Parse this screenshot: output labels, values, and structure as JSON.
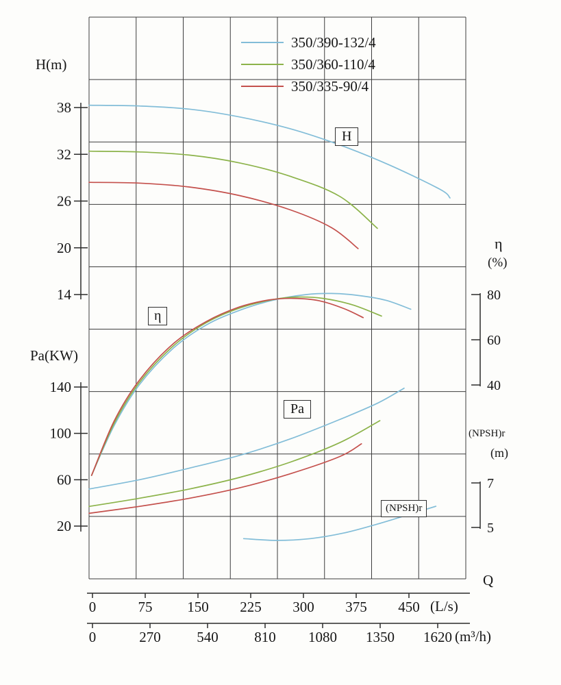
{
  "page": {
    "background": "#fdfdfb",
    "grid_color": "#3d3d3d",
    "text_color": "#161616"
  },
  "legend": {
    "position": "top-center",
    "entries": [
      {
        "label": "350/390-132/4",
        "color": "#82bdd8"
      },
      {
        "label": "350/360-110/4",
        "color": "#8cb34a"
      },
      {
        "label": "350/335-90/4",
        "color": "#c4504c"
      }
    ]
  },
  "axes": {
    "h": {
      "title": "H(m)",
      "ticks": [
        38,
        32,
        26,
        20,
        14
      ]
    },
    "pa": {
      "title": "Pa(KW)",
      "ticks": [
        140,
        100,
        60,
        20
      ]
    },
    "eta": {
      "title": "η",
      "unit": "(%)",
      "ticks": [
        80,
        60,
        40
      ]
    },
    "npsh": {
      "title": "(NPSH)r",
      "unit": "(m)",
      "ticks": [
        7,
        5
      ]
    },
    "q_ls": {
      "title": "Q",
      "unit": "(L/s)",
      "ticks": [
        0,
        75,
        150,
        225,
        300,
        375,
        450
      ]
    },
    "q_m3h": {
      "unit": "(m³/h)",
      "ticks": [
        0,
        270,
        540,
        810,
        1080,
        1350,
        1620
      ]
    }
  },
  "inline_labels": {
    "h": "H",
    "eta": "η",
    "pa": "Pa",
    "npsh": "(NPSH)r"
  },
  "chart_data": {
    "type": "line",
    "title": "",
    "grid": true,
    "legend_position": "top-center",
    "x_axis": {
      "label": "Q",
      "units": [
        "L/s",
        "m³/h"
      ],
      "ticks_ls": [
        0,
        75,
        150,
        225,
        300,
        375,
        450
      ],
      "ticks_m3h": [
        0,
        270,
        540,
        810,
        1080,
        1350,
        1620
      ],
      "range_ls": [
        0,
        450
      ]
    },
    "y_axes": [
      {
        "id": "H",
        "label": "H(m)",
        "side": "left",
        "ticks": [
          38,
          32,
          26,
          20,
          14
        ]
      },
      {
        "id": "Pa",
        "label": "Pa(KW)",
        "side": "left",
        "ticks": [
          140,
          100,
          60,
          20
        ]
      },
      {
        "id": "eta",
        "label": "η(%)",
        "side": "right",
        "ticks": [
          80,
          60,
          40
        ]
      },
      {
        "id": "NPSHr",
        "label": "(NPSH)r(m)",
        "side": "right",
        "ticks": [
          7,
          5
        ]
      }
    ],
    "series": [
      {
        "name": "350/390-132/4",
        "group": "H",
        "axis": "H",
        "unit": "m",
        "color": "#82bdd8",
        "points": [
          [
            0,
            38.3
          ],
          [
            60,
            38.2
          ],
          [
            120,
            37.8
          ],
          [
            180,
            36.8
          ],
          [
            240,
            35.3
          ],
          [
            300,
            33.2
          ],
          [
            360,
            30.6
          ],
          [
            420,
            27.5
          ],
          [
            432,
            26.4
          ]
        ]
      },
      {
        "name": "350/360-110/4",
        "group": "H",
        "axis": "H",
        "unit": "m",
        "color": "#8cb34a",
        "points": [
          [
            0,
            32.4
          ],
          [
            60,
            32.3
          ],
          [
            120,
            31.9
          ],
          [
            180,
            30.9
          ],
          [
            240,
            29.2
          ],
          [
            300,
            26.6
          ],
          [
            345,
            22.5
          ]
        ]
      },
      {
        "name": "350/335-90/4",
        "group": "H",
        "axis": "H",
        "unit": "m",
        "color": "#c4504c",
        "points": [
          [
            0,
            28.4
          ],
          [
            60,
            28.3
          ],
          [
            120,
            27.8
          ],
          [
            180,
            26.7
          ],
          [
            240,
            24.9
          ],
          [
            290,
            22.6
          ],
          [
            322,
            19.9
          ]
        ]
      },
      {
        "name": "350/390-132/4",
        "group": "eta",
        "axis": "eta",
        "unit": "%",
        "color": "#82bdd8",
        "points": [
          [
            3,
            0
          ],
          [
            30,
            22
          ],
          [
            60,
            40
          ],
          [
            100,
            56
          ],
          [
            140,
            66.5
          ],
          [
            180,
            73
          ],
          [
            220,
            77.5
          ],
          [
            260,
            80
          ],
          [
            290,
            80.5
          ],
          [
            320,
            79.7
          ],
          [
            355,
            77.5
          ],
          [
            385,
            73.5
          ]
        ]
      },
      {
        "name": "350/360-110/4",
        "group": "eta",
        "axis": "eta",
        "unit": "%",
        "color": "#8cb34a",
        "points": [
          [
            3,
            0
          ],
          [
            30,
            23
          ],
          [
            60,
            41
          ],
          [
            100,
            57
          ],
          [
            140,
            67.5
          ],
          [
            180,
            74
          ],
          [
            220,
            77.8
          ],
          [
            250,
            78.9
          ],
          [
            280,
            78.3
          ],
          [
            315,
            75.5
          ],
          [
            350,
            70.5
          ]
        ]
      },
      {
        "name": "350/335-90/4",
        "group": "eta",
        "axis": "eta",
        "unit": "%",
        "color": "#c4504c",
        "points": [
          [
            3,
            0
          ],
          [
            30,
            24
          ],
          [
            60,
            42
          ],
          [
            100,
            58
          ],
          [
            140,
            68
          ],
          [
            180,
            74.5
          ],
          [
            215,
            77.6
          ],
          [
            245,
            78.3
          ],
          [
            275,
            77.3
          ],
          [
            305,
            73.8
          ],
          [
            328,
            69.8
          ]
        ]
      },
      {
        "name": "350/390-132/4",
        "group": "Pa",
        "axis": "Pa",
        "unit": "KW",
        "color": "#82bdd8",
        "points": [
          [
            0,
            52
          ],
          [
            60,
            60
          ],
          [
            120,
            70
          ],
          [
            180,
            81
          ],
          [
            240,
            95
          ],
          [
            300,
            112
          ],
          [
            345,
            126
          ],
          [
            377,
            139
          ]
        ]
      },
      {
        "name": "350/360-110/4",
        "group": "Pa",
        "axis": "Pa",
        "unit": "KW",
        "color": "#8cb34a",
        "points": [
          [
            0,
            37
          ],
          [
            60,
            44
          ],
          [
            120,
            52
          ],
          [
            180,
            62
          ],
          [
            240,
            75
          ],
          [
            300,
            92
          ],
          [
            348,
            111
          ]
        ]
      },
      {
        "name": "350/335-90/4",
        "group": "Pa",
        "axis": "Pa",
        "unit": "KW",
        "color": "#c4504c",
        "points": [
          [
            0,
            31
          ],
          [
            60,
            37
          ],
          [
            120,
            44
          ],
          [
            180,
            53
          ],
          [
            240,
            65
          ],
          [
            300,
            80
          ],
          [
            326,
            91
          ]
        ]
      },
      {
        "name": "(NPSH)r",
        "group": "NPSHr",
        "axis": "NPSHr",
        "unit": "m",
        "color": "#82bdd8",
        "points": [
          [
            185,
            4.5
          ],
          [
            225,
            4.42
          ],
          [
            265,
            4.5
          ],
          [
            305,
            4.75
          ],
          [
            345,
            5.15
          ],
          [
            380,
            5.55
          ],
          [
            415,
            5.95
          ]
        ]
      }
    ]
  }
}
